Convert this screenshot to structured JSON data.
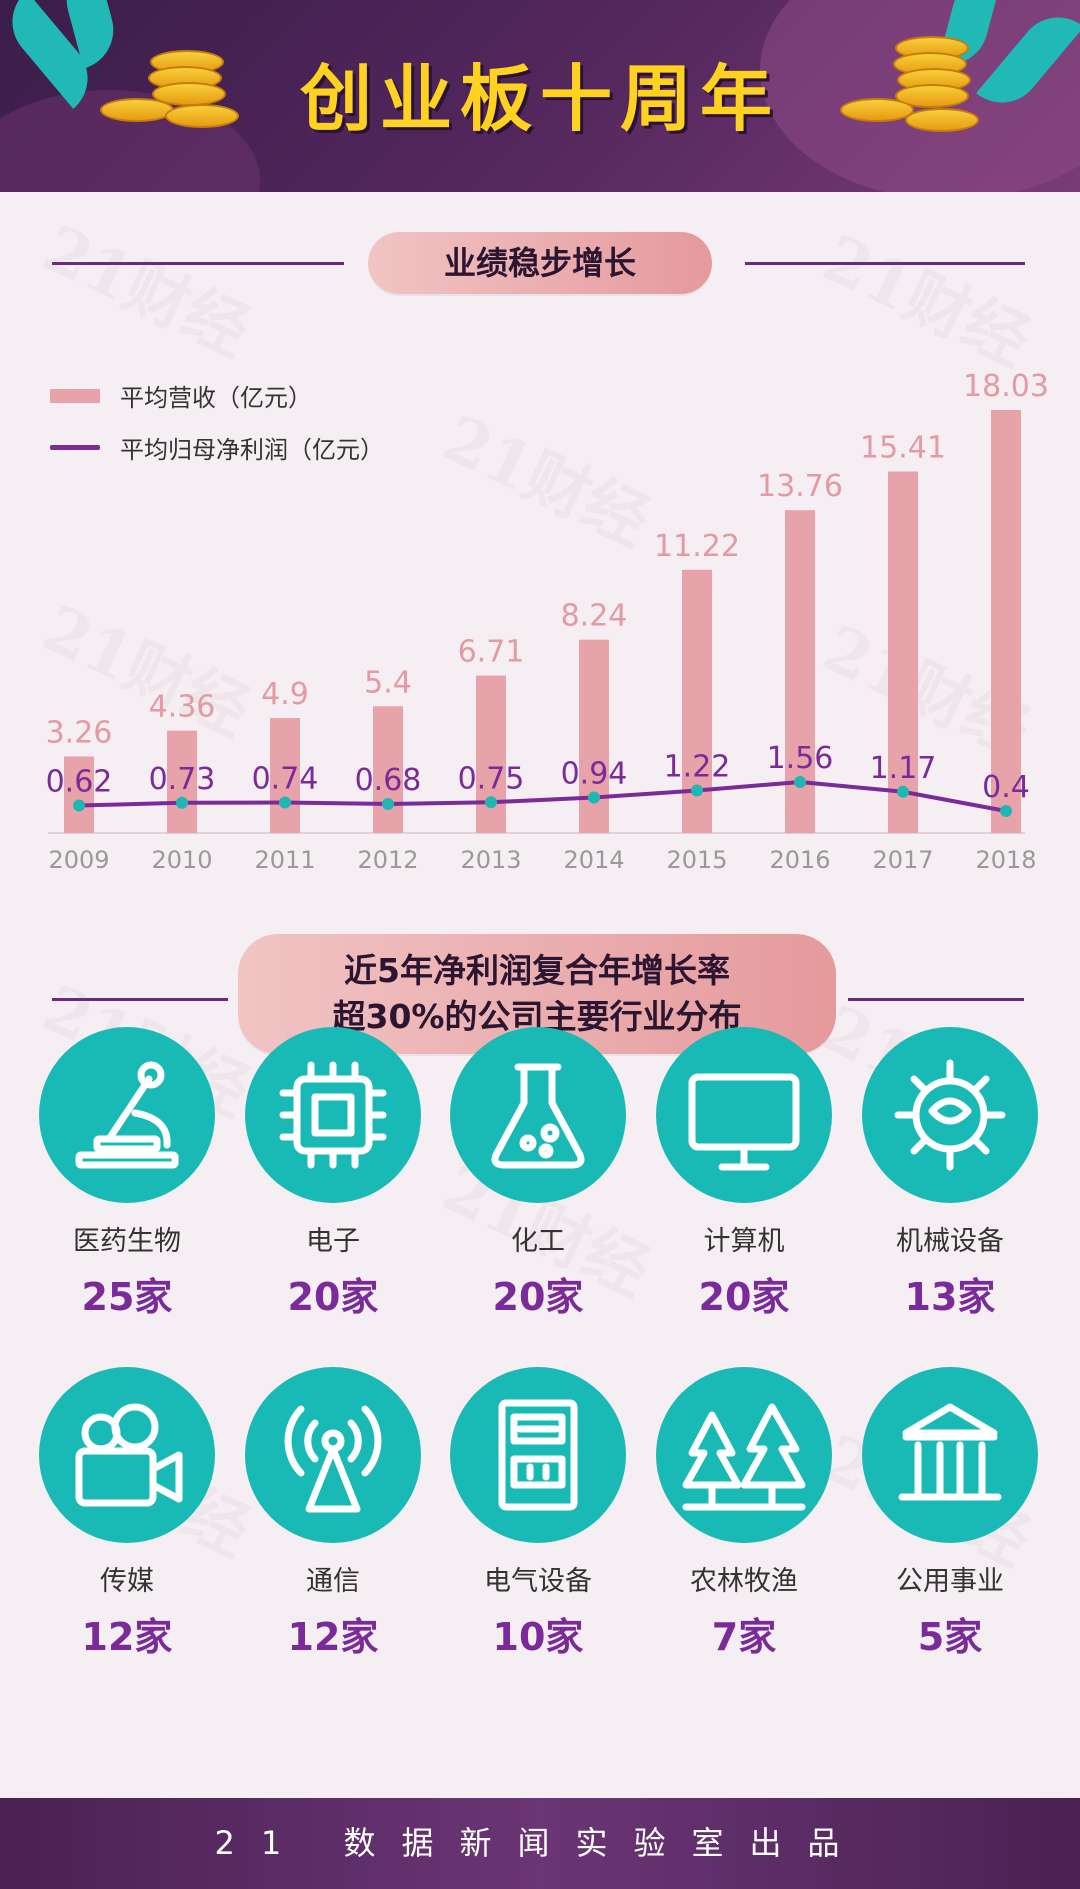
{
  "title": "创业板十周年",
  "section1": {
    "title": "业绩稳步增长"
  },
  "section2": {
    "title_line1": "近5年净利润复合年增长率",
    "title_line2": "超30%的公司主要行业分布"
  },
  "chart_data": {
    "type": "bar+line",
    "categories": [
      "2009",
      "2010",
      "2011",
      "2012",
      "2013",
      "2014",
      "2015",
      "2016",
      "2017",
      "2018"
    ],
    "series": [
      {
        "name": "平均营收（亿元）",
        "type": "bar",
        "color": "#e8a2a9",
        "values": [
          3.26,
          4.36,
          4.9,
          5.4,
          6.71,
          8.24,
          11.22,
          13.76,
          15.41,
          18.03
        ]
      },
      {
        "name": "平均归母净利润（亿元）",
        "type": "line",
        "color": "#7b2a9a",
        "values": [
          0.62,
          0.73,
          0.74,
          0.68,
          0.75,
          0.94,
          1.22,
          1.56,
          1.17,
          0.4
        ]
      }
    ],
    "bar_labels": [
      "3.26",
      "4.36",
      "4.9",
      "5.4",
      "6.71",
      "8.24",
      "11.22",
      "13.76",
      "15.41",
      "18.03"
    ],
    "line_labels": [
      "0.62",
      "0.73",
      "0.74",
      "0.68",
      "0.75",
      "0.94",
      "1.22",
      "1.56",
      "1.17",
      "0.4"
    ],
    "legend_position": "top-left",
    "grid": false
  },
  "industries": [
    {
      "name": "医药生物",
      "count": "25家",
      "icon": "microscope-icon"
    },
    {
      "name": "电子",
      "count": "20家",
      "icon": "chip-icon"
    },
    {
      "name": "化工",
      "count": "20家",
      "icon": "flask-icon"
    },
    {
      "name": "计算机",
      "count": "20家",
      "icon": "monitor-icon"
    },
    {
      "name": "机械设备",
      "count": "13家",
      "icon": "gear-icon"
    },
    {
      "name": "传媒",
      "count": "12家",
      "icon": "video-camera-icon"
    },
    {
      "name": "通信",
      "count": "12家",
      "icon": "antenna-icon"
    },
    {
      "name": "电气设备",
      "count": "10家",
      "icon": "electric-cabinet-icon"
    },
    {
      "name": "农林牧渔",
      "count": "7家",
      "icon": "trees-icon"
    },
    {
      "name": "公用事业",
      "count": "5家",
      "icon": "public-building-icon"
    }
  ],
  "footer": "21 数据新闻实验室出品",
  "colors": {
    "accent_teal": "#19b9b5",
    "accent_purple": "#7b2a9a",
    "bar_pink": "#e8a2a9",
    "title_yellow": "#ffd21f"
  }
}
